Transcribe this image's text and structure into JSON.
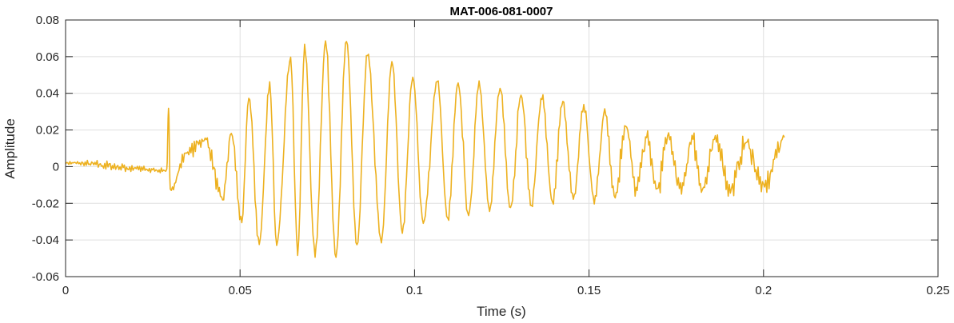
{
  "chart_data": {
    "type": "line",
    "title": "MAT-006-081-0007",
    "xlabel": "Time (s)",
    "ylabel": "Amplitude",
    "xlim": [
      0,
      0.25
    ],
    "ylim": [
      -0.06,
      0.08
    ],
    "xticks": [
      0,
      0.05,
      0.1,
      0.15,
      0.2,
      0.25
    ],
    "xtick_labels": [
      "0",
      "0.05",
      "0.1",
      "0.15",
      "0.2",
      "0.25"
    ],
    "yticks": [
      -0.06,
      -0.04,
      -0.02,
      0,
      0.02,
      0.04,
      0.06,
      0.08
    ],
    "ytick_labels": [
      "-0.06",
      "-0.04",
      "-0.02",
      "0",
      "0.02",
      "0.04",
      "0.06",
      "0.08"
    ],
    "grid": true,
    "line_color": "#EDB120",
    "series": [
      {
        "x": [
          0,
          0.029,
          0.0295,
          0.03,
          0.035,
          0.04,
          0.045,
          0.0475,
          0.0505,
          0.0525,
          0.0555,
          0.0585,
          0.0605,
          0.0645,
          0.0665,
          0.0685,
          0.0715,
          0.0745,
          0.0775,
          0.0805,
          0.0835,
          0.0865,
          0.0905,
          0.0935,
          0.0965,
          0.0995,
          0.1025,
          0.1065,
          0.1095,
          0.1125,
          0.1155,
          0.1185,
          0.1215,
          0.1245,
          0.1275,
          0.1305,
          0.1335,
          0.1365,
          0.1395,
          0.1425,
          0.1455,
          0.1485,
          0.1515,
          0.1545,
          0.1575,
          0.1605,
          0.1635,
          0.1665,
          0.1695,
          0.1725,
          0.1765,
          0.1795,
          0.1825,
          0.1865,
          0.1905,
          0.195,
          0.2,
          0.206
        ],
        "y": [
          0.002,
          -0.002,
          0.031,
          -0.012,
          0.008,
          0.015,
          -0.018,
          0.018,
          -0.031,
          0.038,
          -0.042,
          0.045,
          -0.043,
          0.06,
          -0.047,
          0.065,
          -0.048,
          0.068,
          -0.049,
          0.069,
          -0.044,
          0.061,
          -0.041,
          0.057,
          -0.035,
          0.049,
          -0.031,
          0.047,
          -0.029,
          0.045,
          -0.027,
          0.046,
          -0.024,
          0.043,
          -0.022,
          0.039,
          -0.021,
          0.038,
          -0.02,
          0.035,
          -0.018,
          0.033,
          -0.019,
          0.03,
          -0.016,
          0.023,
          -0.013,
          0.016,
          -0.013,
          0.016,
          -0.013,
          0.016,
          -0.012,
          0.015,
          -0.013,
          0.013,
          -0.011,
          0.016
        ]
      }
    ]
  }
}
